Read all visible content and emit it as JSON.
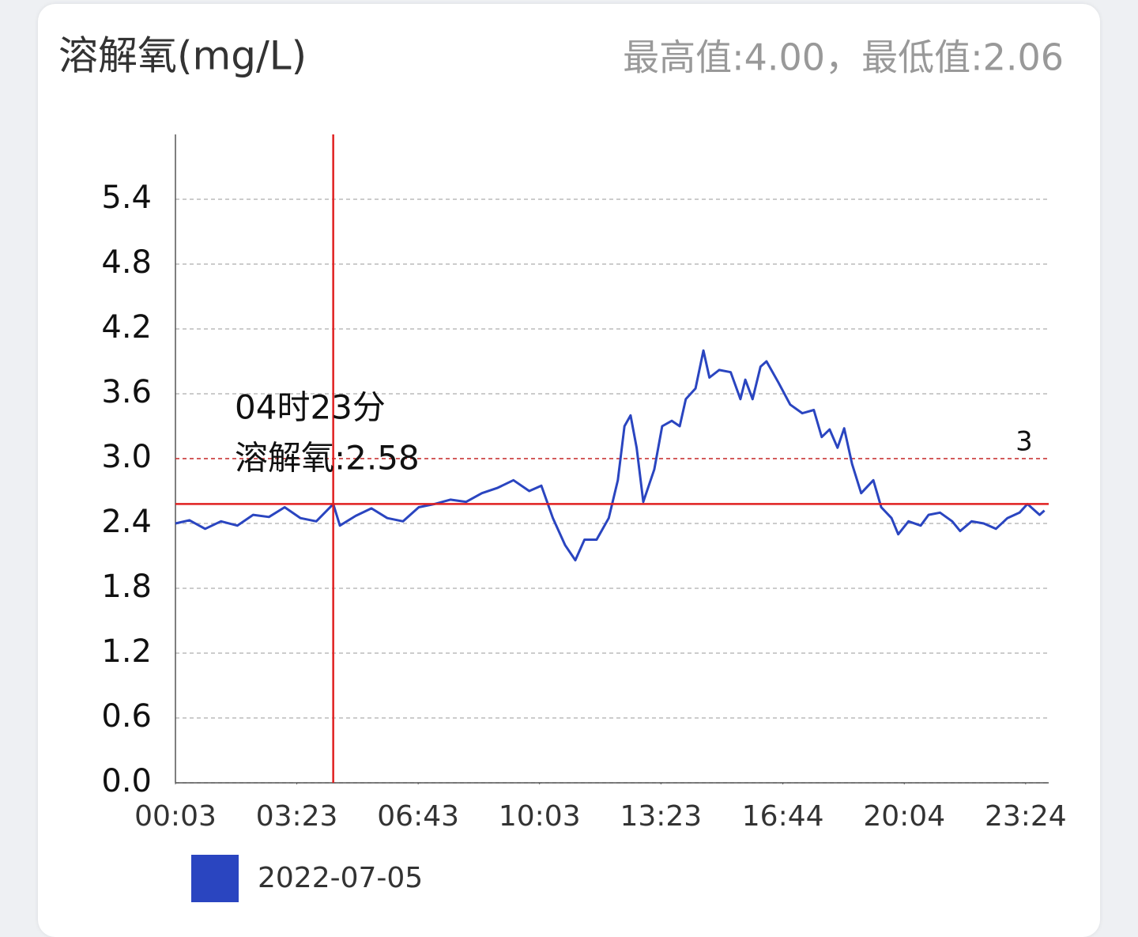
{
  "chart_data": {
    "type": "line",
    "title": "溶解氧(mg/L)",
    "subtitle": "最高值:4.00，最低值:2.06",
    "x": [
      3,
      26,
      52,
      78,
      105,
      131,
      157,
      183,
      209,
      235,
      263,
      274,
      300,
      326,
      352,
      378,
      404,
      430,
      456,
      482,
      508,
      534,
      560,
      586,
      606,
      625,
      645,
      662,
      677,
      697,
      717,
      732,
      743,
      753,
      763,
      774,
      792,
      805,
      821,
      834,
      844,
      860,
      873,
      883,
      899,
      918,
      934,
      942,
      954,
      967,
      977,
      997,
      1016,
      1036,
      1055,
      1068,
      1081,
      1094,
      1105,
      1118,
      1133,
      1153,
      1166,
      1183,
      1194,
      1211,
      1231,
      1244,
      1263,
      1283,
      1296,
      1315,
      1335,
      1355,
      1374,
      1394,
      1407,
      1427,
      1435
    ],
    "series": [
      {
        "name": "2022-07-05",
        "color": "#2a45c0",
        "values": [
          2.4,
          2.43,
          2.35,
          2.42,
          2.38,
          2.48,
          2.46,
          2.55,
          2.45,
          2.42,
          2.58,
          2.38,
          2.47,
          2.54,
          2.45,
          2.42,
          2.55,
          2.58,
          2.62,
          2.6,
          2.68,
          2.73,
          2.8,
          2.7,
          2.75,
          2.45,
          2.2,
          2.06,
          2.25,
          2.25,
          2.45,
          2.8,
          3.3,
          3.4,
          3.1,
          2.6,
          2.9,
          3.3,
          3.35,
          3.3,
          3.55,
          3.65,
          4.0,
          3.75,
          3.82,
          3.8,
          3.55,
          3.73,
          3.55,
          3.85,
          3.9,
          3.7,
          3.5,
          3.42,
          3.45,
          3.2,
          3.27,
          3.1,
          3.28,
          2.95,
          2.68,
          2.8,
          2.55,
          2.45,
          2.3,
          2.42,
          2.38,
          2.48,
          2.5,
          2.42,
          2.33,
          2.42,
          2.4,
          2.35,
          2.45,
          2.5,
          2.58,
          2.48,
          2.52
        ]
      }
    ],
    "xlim": [
      3,
      1442
    ],
    "xticks": [
      {
        "value": 3,
        "label": "00:03"
      },
      {
        "value": 203,
        "label": "03:23"
      },
      {
        "value": 403,
        "label": "06:43"
      },
      {
        "value": 603,
        "label": "10:03"
      },
      {
        "value": 803,
        "label": "13:23"
      },
      {
        "value": 1004,
        "label": "16:44"
      },
      {
        "value": 1204,
        "label": "20:04"
      },
      {
        "value": 1404,
        "label": "23:24"
      }
    ],
    "ylim": [
      0,
      6
    ],
    "yticks": [
      {
        "value": 0,
        "label": "0.0"
      },
      0.6,
      1.2,
      1.8,
      2.4,
      {
        "value": 3,
        "label": "3.0"
      },
      3.6,
      4.2,
      4.8,
      5.4
    ],
    "grid": true,
    "limit_line": {
      "value": 3,
      "color": "#d03030"
    },
    "highlight": {
      "x": 263,
      "y": 2.58,
      "color": "#e02020",
      "labels": [
        "04时23分",
        "溶解氧:2.58"
      ]
    }
  }
}
